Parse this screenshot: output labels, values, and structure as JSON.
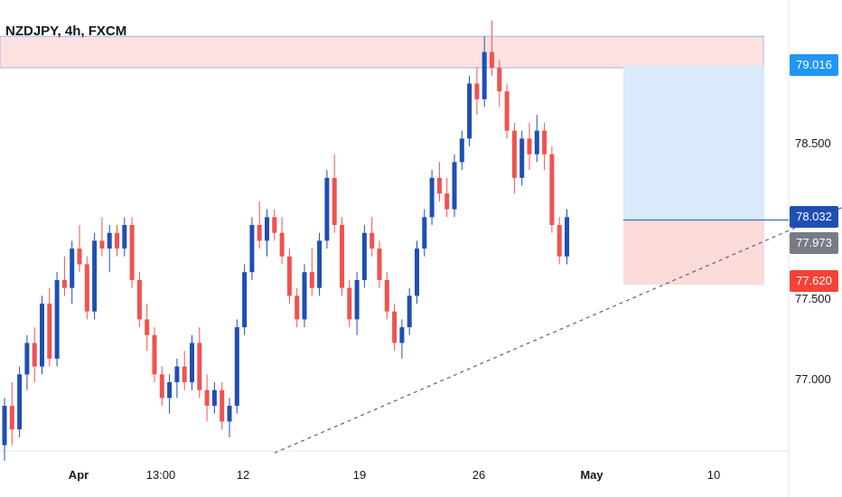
{
  "title": "NZDJPY, 4h, FXCM",
  "colors": {
    "up": "#1f4fb3",
    "down": "#ef5350",
    "trendline": "#5d6370",
    "resistance_fill": "#fde0e0",
    "resistance_border": "#9bb7e6",
    "target_fill": "#d9eafb",
    "stop_fill": "#fbdada",
    "tag_target": "#2196f3",
    "tag_entry": "#1f4fb3",
    "tag_current": "#787b86",
    "tag_stop": "#f44336"
  },
  "chart_data": {
    "type": "candlestick",
    "symbol": "NZDJPY",
    "timeframe": "4h",
    "source": "FXCM",
    "y_ticks": [
      "77.000",
      "77.500",
      "78.500"
    ],
    "x_ticks": [
      {
        "label": "Apr",
        "bold": true,
        "index": 11
      },
      {
        "label": "13:00",
        "bold": false,
        "index": 23
      },
      {
        "label": "12",
        "bold": false,
        "index": 35
      },
      {
        "label": "19",
        "bold": false,
        "index": 53
      },
      {
        "label": "26",
        "bold": false,
        "index": 71
      },
      {
        "label": "May",
        "bold": true,
        "index": 87
      },
      {
        "label": "10",
        "bold": false,
        "index": 105
      }
    ],
    "price_labels": {
      "target": "79.016",
      "entry": "78.032",
      "current": "77.973",
      "stop": "77.620"
    },
    "levels": {
      "target": 79.016,
      "entry": 78.032,
      "stop": 77.62,
      "resistance_top": 79.2,
      "resistance_bottom": 79.0
    },
    "trendline": [
      {
        "index": 36,
        "price": 76.55
      },
      {
        "index": 116,
        "price": 78.2
      }
    ],
    "ohlc": [
      [
        76.6,
        76.9,
        76.5,
        76.85
      ],
      [
        76.85,
        77.0,
        76.6,
        76.7
      ],
      [
        76.7,
        77.1,
        76.65,
        77.05
      ],
      [
        77.05,
        77.3,
        76.95,
        77.25
      ],
      [
        77.25,
        77.35,
        77.0,
        77.1
      ],
      [
        77.1,
        77.55,
        77.05,
        77.5
      ],
      [
        77.5,
        77.6,
        77.1,
        77.15
      ],
      [
        77.15,
        77.7,
        77.1,
        77.65
      ],
      [
        77.65,
        77.8,
        77.55,
        77.6
      ],
      [
        77.6,
        77.9,
        77.5,
        77.85
      ],
      [
        77.85,
        78.0,
        77.7,
        77.75
      ],
      [
        77.75,
        77.8,
        77.4,
        77.45
      ],
      [
        77.45,
        77.95,
        77.4,
        77.9
      ],
      [
        77.9,
        78.05,
        77.8,
        77.85
      ],
      [
        77.85,
        78.0,
        77.7,
        77.95
      ],
      [
        77.95,
        78.0,
        77.8,
        77.85
      ],
      [
        77.85,
        78.05,
        77.8,
        78.0
      ],
      [
        78.0,
        78.05,
        77.6,
        77.65
      ],
      [
        77.65,
        77.7,
        77.35,
        77.4
      ],
      [
        77.4,
        77.5,
        77.2,
        77.3
      ],
      [
        77.3,
        77.35,
        77.0,
        77.05
      ],
      [
        77.05,
        77.1,
        76.85,
        76.9
      ],
      [
        76.9,
        77.05,
        76.8,
        77.0
      ],
      [
        77.0,
        77.15,
        76.9,
        77.1
      ],
      [
        77.1,
        77.2,
        76.95,
        77.0
      ],
      [
        77.0,
        77.3,
        76.95,
        77.25
      ],
      [
        77.25,
        77.35,
        76.9,
        76.95
      ],
      [
        76.95,
        77.05,
        76.75,
        76.85
      ],
      [
        76.85,
        77.0,
        76.8,
        76.95
      ],
      [
        76.95,
        77.0,
        76.7,
        76.75
      ],
      [
        76.75,
        76.9,
        76.65,
        76.85
      ],
      [
        76.85,
        77.4,
        76.8,
        77.35
      ],
      [
        77.35,
        77.75,
        77.3,
        77.7
      ],
      [
        77.7,
        78.05,
        77.65,
        78.0
      ],
      [
        78.0,
        78.15,
        77.85,
        77.9
      ],
      [
        77.9,
        78.1,
        77.8,
        78.05
      ],
      [
        78.05,
        78.1,
        77.9,
        77.95
      ],
      [
        77.95,
        78.05,
        77.75,
        77.8
      ],
      [
        77.8,
        77.85,
        77.5,
        77.55
      ],
      [
        77.55,
        77.6,
        77.35,
        77.4
      ],
      [
        77.4,
        77.75,
        77.35,
        77.7
      ],
      [
        77.7,
        77.85,
        77.55,
        77.6
      ],
      [
        77.6,
        77.95,
        77.55,
        77.9
      ],
      [
        77.9,
        78.35,
        77.85,
        78.3
      ],
      [
        78.3,
        78.45,
        77.95,
        78.0
      ],
      [
        78.0,
        78.05,
        77.55,
        77.6
      ],
      [
        77.6,
        77.65,
        77.35,
        77.4
      ],
      [
        77.4,
        77.7,
        77.3,
        77.65
      ],
      [
        77.65,
        78.0,
        77.6,
        77.95
      ],
      [
        77.95,
        78.05,
        77.8,
        77.85
      ],
      [
        77.85,
        77.9,
        77.6,
        77.65
      ],
      [
        77.65,
        77.7,
        77.4,
        77.45
      ],
      [
        77.45,
        77.5,
        77.2,
        77.25
      ],
      [
        77.25,
        77.4,
        77.15,
        77.35
      ],
      [
        77.35,
        77.6,
        77.3,
        77.55
      ],
      [
        77.55,
        77.9,
        77.5,
        77.85
      ],
      [
        77.85,
        78.1,
        77.8,
        78.05
      ],
      [
        78.05,
        78.35,
        78.0,
        78.3
      ],
      [
        78.3,
        78.4,
        78.15,
        78.2
      ],
      [
        78.2,
        78.3,
        78.05,
        78.1
      ],
      [
        78.1,
        78.45,
        78.05,
        78.4
      ],
      [
        78.4,
        78.6,
        78.35,
        78.55
      ],
      [
        78.55,
        78.95,
        78.5,
        78.9
      ],
      [
        78.9,
        79.0,
        78.7,
        78.8
      ],
      [
        78.8,
        79.2,
        78.75,
        79.1
      ],
      [
        79.1,
        79.3,
        78.95,
        79.0
      ],
      [
        79.0,
        79.05,
        78.75,
        78.85
      ],
      [
        78.85,
        78.9,
        78.55,
        78.6
      ],
      [
        78.6,
        78.65,
        78.2,
        78.3
      ],
      [
        78.3,
        78.6,
        78.25,
        78.55
      ],
      [
        78.55,
        78.65,
        78.35,
        78.45
      ],
      [
        78.45,
        78.7,
        78.4,
        78.6
      ],
      [
        78.6,
        78.65,
        78.35,
        78.45
      ],
      [
        78.45,
        78.5,
        77.95,
        78.0
      ],
      [
        78.0,
        78.05,
        77.75,
        77.8
      ],
      [
        77.8,
        78.1,
        77.75,
        78.05
      ]
    ]
  }
}
